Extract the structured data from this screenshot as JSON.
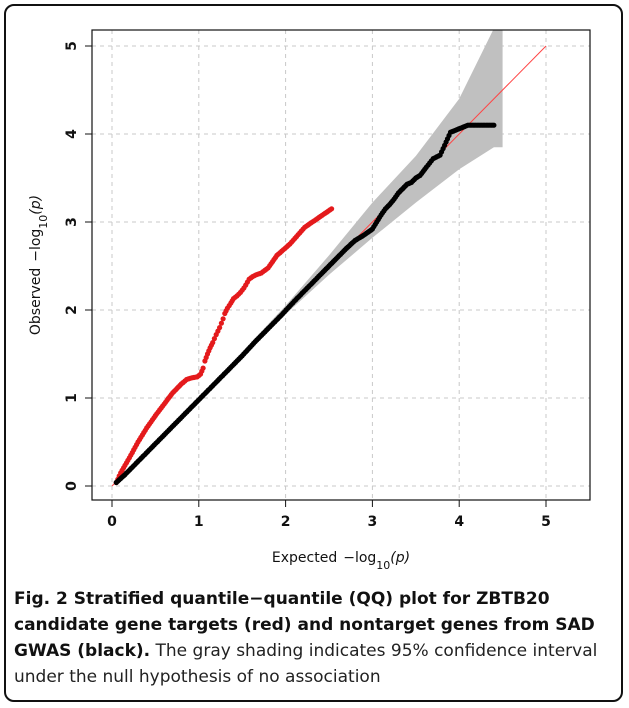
{
  "chart_data": {
    "type": "scatter",
    "xlabel": "Expected",
    "ylabel": "Observed",
    "log_label": "−log",
    "log_base": "10",
    "log_arg": "(p)",
    "xlim": [
      0,
      5
    ],
    "ylim": [
      0,
      5
    ],
    "x_ticks": [
      "0",
      "1",
      "2",
      "3",
      "4",
      "5"
    ],
    "y_ticks": [
      "0",
      "1",
      "2",
      "3",
      "4",
      "5"
    ],
    "grid": true,
    "reference_line": {
      "from": [
        0,
        0
      ],
      "to": [
        5,
        5
      ],
      "color": "#ff4444"
    },
    "confidence_band": {
      "color": "#c0c0c0",
      "x": [
        0,
        1,
        2,
        2.5,
        3,
        3.5,
        4,
        4.4,
        4.5
      ],
      "lower": [
        0,
        1,
        1.95,
        2.4,
        2.82,
        3.22,
        3.6,
        3.85,
        3.85
      ],
      "upper": [
        0,
        1,
        2.05,
        2.62,
        3.22,
        3.75,
        4.4,
        5.2,
        5.2
      ]
    },
    "series": [
      {
        "color": "#e41a1c",
        "x": [
          0.05,
          0.1,
          0.2,
          0.3,
          0.4,
          0.5,
          0.6,
          0.7,
          0.8,
          0.86,
          0.92,
          0.98,
          1.02,
          1.05,
          1.07,
          1.1,
          1.13,
          1.16,
          1.2,
          1.24,
          1.28,
          1.3,
          1.33,
          1.37,
          1.4,
          1.44,
          1.48,
          1.52,
          1.58,
          1.62,
          1.66,
          1.72,
          1.8,
          1.9,
          2.05,
          2.22,
          2.53
        ],
        "y": [
          0.04,
          0.15,
          0.32,
          0.5,
          0.66,
          0.8,
          0.93,
          1.06,
          1.16,
          1.21,
          1.23,
          1.24,
          1.27,
          1.34,
          1.42,
          1.5,
          1.57,
          1.63,
          1.72,
          1.8,
          1.9,
          1.96,
          2.02,
          2.08,
          2.13,
          2.16,
          2.2,
          2.25,
          2.35,
          2.38,
          2.4,
          2.42,
          2.48,
          2.62,
          2.75,
          2.94,
          3.15
        ]
      },
      {
        "color": "#000000",
        "x": [
          0.05,
          0.15,
          0.3,
          0.45,
          0.6,
          0.75,
          0.9,
          1.05,
          1.2,
          1.35,
          1.5,
          1.65,
          1.8,
          1.95,
          2.1,
          2.25,
          2.4,
          2.5,
          2.6,
          2.7,
          2.8,
          2.9,
          3.0,
          3.05,
          3.1,
          3.15,
          3.2,
          3.25,
          3.3,
          3.35,
          3.4,
          3.45,
          3.5,
          3.55,
          3.62,
          3.7,
          3.78,
          3.9,
          4.1,
          4.4
        ],
        "y": [
          0.04,
          0.13,
          0.28,
          0.43,
          0.58,
          0.73,
          0.88,
          1.03,
          1.18,
          1.33,
          1.48,
          1.64,
          1.79,
          1.94,
          2.1,
          2.25,
          2.4,
          2.5,
          2.6,
          2.7,
          2.79,
          2.85,
          2.92,
          3.0,
          3.08,
          3.15,
          3.2,
          3.26,
          3.33,
          3.38,
          3.43,
          3.45,
          3.5,
          3.53,
          3.62,
          3.72,
          3.76,
          4.02,
          4.1,
          4.1
        ]
      }
    ]
  },
  "caption": {
    "lead": "Fig. 2 Stratified quantile−quantile (QQ) plot for ZBTB20 candidate gene targets (red) and nontarget genes from SAD GWAS (black).",
    "body": " The gray shading indicates 95% confidence interval under the null hypothesis of no association"
  }
}
